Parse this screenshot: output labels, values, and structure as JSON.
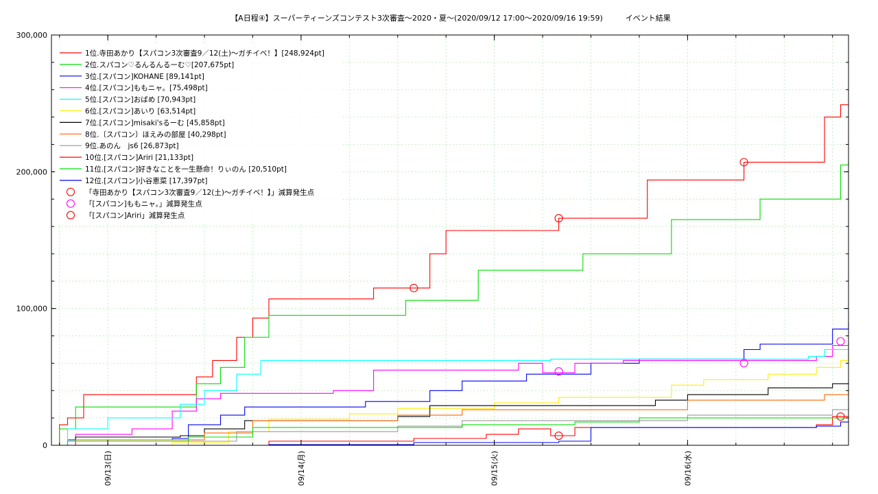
{
  "chart_data": {
    "type": "line",
    "title": "【A日程④】スーパーティーンズコンテスト3次審査～2020・夏～(2020/09/12 17:00～2020/09/16 19:59)　　　イベント結果",
    "xlabel": "",
    "ylabel": "",
    "xlim": [
      "2020-09-12 17:00",
      "2020-09-16 19:59"
    ],
    "ylim": [
      0,
      300000
    ],
    "grid": true,
    "legend_position": "top-left",
    "y_ticks": [
      {
        "value": 0,
        "label": "0"
      },
      {
        "value": 100000,
        "label": "100,000"
      },
      {
        "value": 200000,
        "label": "200,000"
      },
      {
        "value": 300000,
        "label": "300,000"
      }
    ],
    "x_ticks": [
      {
        "value": "2020-09-13 00:00",
        "label": "09/13(日)"
      },
      {
        "value": "2020-09-14 00:00",
        "label": "09/14(月)"
      },
      {
        "value": "2020-09-15 00:00",
        "label": "09/15(火)"
      },
      {
        "value": "2020-09-16 00:00",
        "label": "09/16(水)"
      }
    ],
    "series": [
      {
        "name": "1位.寺田あかり【スパコン3次審査9／12(土)～ガチイベ！】[248,924pt]",
        "color": "#ff0000",
        "points": [
          [
            "2020-09-12 17:00",
            0
          ],
          [
            "2020-09-12 18:00",
            15000
          ],
          [
            "2020-09-12 19:00",
            20000
          ],
          [
            "2020-09-12 21:00",
            37000
          ],
          [
            "2020-09-13 09:00",
            37000
          ],
          [
            "2020-09-13 11:00",
            50000
          ],
          [
            "2020-09-13 13:00",
            62000
          ],
          [
            "2020-09-13 16:00",
            79000
          ],
          [
            "2020-09-13 18:00",
            93000
          ],
          [
            "2020-09-13 20:00",
            107000
          ],
          [
            "2020-09-14 08:00",
            107000
          ],
          [
            "2020-09-14 09:00",
            115000
          ],
          [
            "2020-09-14 14:00",
            115000
          ],
          [
            "2020-09-14 16:00",
            140000
          ],
          [
            "2020-09-14 18:00",
            157000
          ],
          [
            "2020-09-15 07:00",
            157000
          ],
          [
            "2020-09-15 08:00",
            166000
          ],
          [
            "2020-09-15 17:00",
            166000
          ],
          [
            "2020-09-15 19:00",
            194000
          ],
          [
            "2020-09-16 06:00",
            194000
          ],
          [
            "2020-09-16 07:00",
            207000
          ],
          [
            "2020-09-16 15:00",
            207000
          ],
          [
            "2020-09-16 17:00",
            240000
          ],
          [
            "2020-09-16 19:00",
            249000
          ],
          [
            "2020-09-16 19:59",
            248924
          ]
        ]
      },
      {
        "name": "2位.スパコン♡るんるんるーむ♡[207,675pt]",
        "color": "#00dd00",
        "points": [
          [
            "2020-09-12 17:00",
            0
          ],
          [
            "2020-09-12 18:00",
            12000
          ],
          [
            "2020-09-12 20:00",
            28000
          ],
          [
            "2020-09-13 09:00",
            28000
          ],
          [
            "2020-09-13 11:00",
            45000
          ],
          [
            "2020-09-13 14:00",
            57000
          ],
          [
            "2020-09-13 17:00",
            79000
          ],
          [
            "2020-09-13 20:00",
            95000
          ],
          [
            "2020-09-14 11:00",
            95000
          ],
          [
            "2020-09-14 13:00",
            106000
          ],
          [
            "2020-09-14 20:00",
            106000
          ],
          [
            "2020-09-14 22:00",
            128000
          ],
          [
            "2020-09-15 09:00",
            128000
          ],
          [
            "2020-09-15 11:00",
            140000
          ],
          [
            "2020-09-15 20:00",
            140000
          ],
          [
            "2020-09-15 22:00",
            165000
          ],
          [
            "2020-09-16 07:00",
            165000
          ],
          [
            "2020-09-16 09:00",
            180000
          ],
          [
            "2020-09-16 17:00",
            180000
          ],
          [
            "2020-09-16 19:00",
            205000
          ],
          [
            "2020-09-16 19:59",
            207675
          ]
        ]
      },
      {
        "name": "3位.[スパコン]KOHANE [89,141pt]",
        "color": "#0000ee",
        "points": [
          [
            "2020-09-12 17:00",
            0
          ],
          [
            "2020-09-12 19:00",
            4000
          ],
          [
            "2020-09-13 08:00",
            5000
          ],
          [
            "2020-09-13 10:00",
            15000
          ],
          [
            "2020-09-13 14:00",
            22000
          ],
          [
            "2020-09-13 17:00",
            28000
          ],
          [
            "2020-09-14 08:00",
            32000
          ],
          [
            "2020-09-14 16:00",
            40000
          ],
          [
            "2020-09-14 20:00",
            47000
          ],
          [
            "2020-09-15 04:00",
            52000
          ],
          [
            "2020-09-15 12:00",
            60000
          ],
          [
            "2020-09-15 18:00",
            63000
          ],
          [
            "2020-09-16 07:00",
            70000
          ],
          [
            "2020-09-16 09:00",
            74000
          ],
          [
            "2020-09-16 15:00",
            74000
          ],
          [
            "2020-09-16 18:00",
            85000
          ],
          [
            "2020-09-16 19:59",
            89141
          ]
        ]
      },
      {
        "name": "4位.[スパコン]ももニャ。[75,498pt]",
        "color": "#ff00ff",
        "points": [
          [
            "2020-09-12 17:00",
            0
          ],
          [
            "2020-09-12 20:00",
            8000
          ],
          [
            "2020-09-13 03:00",
            12000
          ],
          [
            "2020-09-13 08:00",
            25000
          ],
          [
            "2020-09-13 11:00",
            34000
          ],
          [
            "2020-09-13 14:00",
            38000
          ],
          [
            "2020-09-14 04:00",
            40000
          ],
          [
            "2020-09-14 09:00",
            55000
          ],
          [
            "2020-09-15 03:00",
            60000
          ],
          [
            "2020-09-15 06:00",
            53000
          ],
          [
            "2020-09-15 10:00",
            60000
          ],
          [
            "2020-09-15 16:00",
            62000
          ],
          [
            "2020-09-16 16:00",
            65000
          ],
          [
            "2020-09-16 18:00",
            73000
          ],
          [
            "2020-09-16 19:59",
            75498
          ]
        ]
      },
      {
        "name": "5位.[スパコン]おばめ [70,943pt]",
        "color": "#00ffff",
        "points": [
          [
            "2020-09-12 17:00",
            0
          ],
          [
            "2020-09-12 19:00",
            12000
          ],
          [
            "2020-09-13 00:00",
            20000
          ],
          [
            "2020-09-13 09:00",
            30000
          ],
          [
            "2020-09-13 12:00",
            40000
          ],
          [
            "2020-09-13 16:00",
            52000
          ],
          [
            "2020-09-13 19:00",
            62000
          ],
          [
            "2020-09-15 07:00",
            63000
          ],
          [
            "2020-09-16 15:00",
            65000
          ],
          [
            "2020-09-16 17:00",
            70000
          ],
          [
            "2020-09-16 19:59",
            70943
          ]
        ]
      },
      {
        "name": "6位.[スパコン]あいり [63,514pt]",
        "color": "#ffee00",
        "points": [
          [
            "2020-09-12 17:00",
            0
          ],
          [
            "2020-09-13 08:00",
            2000
          ],
          [
            "2020-09-13 15:00",
            10000
          ],
          [
            "2020-09-13 20:00",
            19000
          ],
          [
            "2020-09-14 06:00",
            23000
          ],
          [
            "2020-09-14 12:00",
            27000
          ],
          [
            "2020-09-15 00:00",
            31000
          ],
          [
            "2020-09-15 08:00",
            35000
          ],
          [
            "2020-09-15 22:00",
            44000
          ],
          [
            "2020-09-16 02:00",
            48000
          ],
          [
            "2020-09-16 10:00",
            52000
          ],
          [
            "2020-09-16 16:00",
            57000
          ],
          [
            "2020-09-16 19:00",
            62000
          ],
          [
            "2020-09-16 19:59",
            63514
          ]
        ]
      },
      {
        "name": "7位.[スパコン]misaki'sるーむ [45,858pt]",
        "color": "#000000",
        "points": [
          [
            "2020-09-12 17:00",
            0
          ],
          [
            "2020-09-12 20:00",
            6000
          ],
          [
            "2020-09-13 09:00",
            7000
          ],
          [
            "2020-09-13 12:00",
            12000
          ],
          [
            "2020-09-13 17:00",
            18000
          ],
          [
            "2020-09-14 12:00",
            21000
          ],
          [
            "2020-09-14 16:00",
            29000
          ],
          [
            "2020-09-15 20:00",
            33000
          ],
          [
            "2020-09-16 00:00",
            37000
          ],
          [
            "2020-09-16 10:00",
            42000
          ],
          [
            "2020-09-16 18:00",
            45000
          ],
          [
            "2020-09-16 19:59",
            45858
          ]
        ]
      },
      {
        "name": "8位.〔スパコン〕ほえみの部屋 [40,298pt]",
        "color": "#ff6600",
        "points": [
          [
            "2020-09-12 17:00",
            0
          ],
          [
            "2020-09-12 20:00",
            4000
          ],
          [
            "2020-09-13 12:00",
            9000
          ],
          [
            "2020-09-13 18:00",
            18000
          ],
          [
            "2020-09-14 12:00",
            22000
          ],
          [
            "2020-09-14 20:00",
            26000
          ],
          [
            "2020-09-16 00:00",
            33000
          ],
          [
            "2020-09-16 17:00",
            37000
          ],
          [
            "2020-09-16 19:59",
            40298
          ]
        ]
      },
      {
        "name": "9位.あのん　js6 [26,873pt]",
        "color": "#999999",
        "points": [
          [
            "2020-09-12 17:00",
            0
          ],
          [
            "2020-09-13 10:00",
            3000
          ],
          [
            "2020-09-13 16:00",
            10000
          ],
          [
            "2020-09-14 12:00",
            14000
          ],
          [
            "2020-09-14 20:00",
            18000
          ],
          [
            "2020-09-16 00:00",
            22000
          ],
          [
            "2020-09-16 18:00",
            26000
          ],
          [
            "2020-09-16 19:59",
            26873
          ]
        ]
      },
      {
        "name": "10位.[スパコン]Ariri [21,133pt]",
        "color": "#ff0000",
        "points": [
          [
            "2020-09-12 17:00",
            0
          ],
          [
            "2020-09-13 20:00",
            3000
          ],
          [
            "2020-09-14 14:00",
            5000
          ],
          [
            "2020-09-14 23:00",
            8000
          ],
          [
            "2020-09-15 03:00",
            12000
          ],
          [
            "2020-09-15 07:00",
            7000
          ],
          [
            "2020-09-15 10:00",
            13000
          ],
          [
            "2020-09-16 16:00",
            15000
          ],
          [
            "2020-09-16 18:00",
            21000
          ],
          [
            "2020-09-16 19:59",
            21133
          ]
        ]
      },
      {
        "name": "11位.[スパコン]好きなことを一生懸命！りぃのん [20,510pt]",
        "color": "#00dd00",
        "points": [
          [
            "2020-09-12 17:00",
            0
          ],
          [
            "2020-09-12 19:00",
            3000
          ],
          [
            "2020-09-13 10:00",
            6000
          ],
          [
            "2020-09-13 18:00",
            13000
          ],
          [
            "2020-09-14 20:00",
            15000
          ],
          [
            "2020-09-15 10:00",
            17000
          ],
          [
            "2020-09-15 18:00",
            20000
          ],
          [
            "2020-09-16 19:59",
            20510
          ]
        ]
      },
      {
        "name": "12位.[スパコン]小谷恵菜 [17,397pt]",
        "color": "#0000ee",
        "points": [
          [
            "2020-09-12 17:00",
            0
          ],
          [
            "2020-09-13 20:00",
            500
          ],
          [
            "2020-09-14 14:00",
            2000
          ],
          [
            "2020-09-15 08:00",
            3000
          ],
          [
            "2020-09-15 12:00",
            13000
          ],
          [
            "2020-09-16 16:00",
            14000
          ],
          [
            "2020-09-16 19:00",
            17000
          ],
          [
            "2020-09-16 19:59",
            17397
          ]
        ]
      }
    ],
    "markers": [
      {
        "name": "「寺田あかり【スパコン3次審査9／12(土)～ガチイベ！】」減算発生点",
        "color": "#ff0000",
        "points": [
          [
            "2020-09-14 14:00",
            115000
          ],
          [
            "2020-09-15 08:00",
            166000
          ],
          [
            "2020-09-16 07:00",
            207000
          ]
        ]
      },
      {
        "name": "「[スパコン]ももニャ。」減算発生点",
        "color": "#ff00ff",
        "points": [
          [
            "2020-09-15 08:00",
            54000
          ],
          [
            "2020-09-16 07:00",
            60000
          ],
          [
            "2020-09-16 19:00",
            76000
          ]
        ]
      },
      {
        "name": "「[スパコン]Ariri」減算発生点",
        "color": "#ff0000",
        "points": [
          [
            "2020-09-15 08:00",
            7000
          ],
          [
            "2020-09-16 19:00",
            21000
          ]
        ]
      }
    ]
  }
}
